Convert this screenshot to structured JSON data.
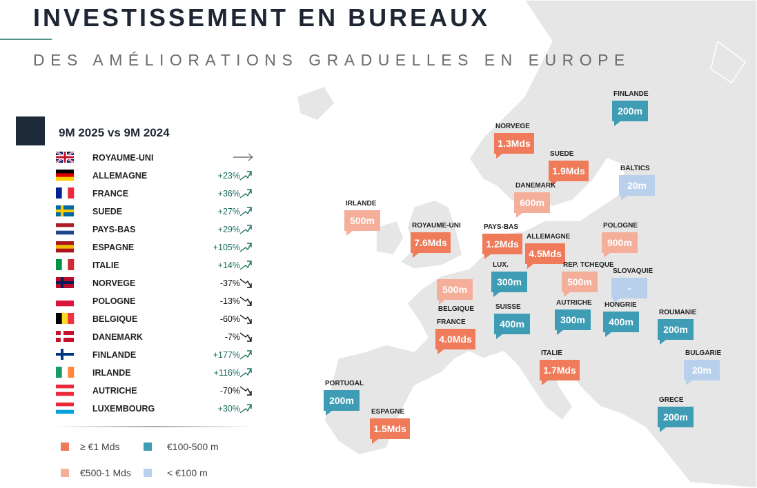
{
  "header": {
    "title": "INVESTISSEMENT EN BUREAUX",
    "subtitle": "DES AMÉLIORATIONS GRADUELLES EN EUROPE"
  },
  "table": {
    "title": "9M 2025 vs 9M 2024",
    "rows": [
      {
        "country": "ROYAUME-UNI",
        "trend": "flat",
        "flag": {
          "type": "uk",
          "colors": [
            "#012169",
            "#ffffff",
            "#c8102e"
          ]
        }
      },
      {
        "country": "ALLEMAGNE",
        "change": "+23%",
        "trend": "up",
        "flag": {
          "type": "h",
          "colors": [
            "#000000",
            "#dd0000",
            "#ffce00"
          ]
        }
      },
      {
        "country": "FRANCE",
        "change": "+36%",
        "trend": "up",
        "flag": {
          "type": "v",
          "colors": [
            "#002395",
            "#ffffff",
            "#ed2939"
          ]
        }
      },
      {
        "country": "SUEDE",
        "change": "+27%",
        "trend": "up",
        "flag": {
          "type": "nordic",
          "colors": [
            "#006aa7",
            "#fecc00"
          ]
        }
      },
      {
        "country": "PAYS-BAS",
        "change": "+29%",
        "trend": "up",
        "flag": {
          "type": "h",
          "colors": [
            "#ae1c28",
            "#ffffff",
            "#21468b"
          ]
        }
      },
      {
        "country": "ESPAGNE",
        "change": "+105%",
        "trend": "up",
        "flag": {
          "type": "h",
          "colors": [
            "#aa151b",
            "#f1bf00",
            "#aa151b"
          ]
        }
      },
      {
        "country": "ITALIE",
        "change": "+14%",
        "trend": "up",
        "flag": {
          "type": "v",
          "colors": [
            "#009246",
            "#ffffff",
            "#ce2b37"
          ]
        }
      },
      {
        "country": "NORVEGE",
        "change": "-37%",
        "trend": "down",
        "flag": {
          "type": "nordic",
          "colors": [
            "#ba0c2f",
            "#00205b"
          ]
        }
      },
      {
        "country": "POLOGNE",
        "change": "-13%",
        "trend": "down",
        "flag": {
          "type": "h",
          "colors": [
            "#ffffff",
            "#dc143c"
          ]
        }
      },
      {
        "country": "BELGIQUE",
        "change": "-60%",
        "trend": "down",
        "flag": {
          "type": "v",
          "colors": [
            "#000000",
            "#fdda24",
            "#ef3340"
          ]
        }
      },
      {
        "country": "DANEMARK",
        "change": "-7%",
        "trend": "down",
        "flag": {
          "type": "nordic",
          "colors": [
            "#c8102e",
            "#ffffff"
          ]
        }
      },
      {
        "country": "FINLANDE",
        "change": "+177%",
        "trend": "up",
        "flag": {
          "type": "nordic",
          "colors": [
            "#ffffff",
            "#003580"
          ]
        }
      },
      {
        "country": "IRLANDE",
        "change": "+116%",
        "trend": "up",
        "flag": {
          "type": "v",
          "colors": [
            "#169b62",
            "#ffffff",
            "#ff883e"
          ]
        }
      },
      {
        "country": "AUTRICHE",
        "change": "-70%",
        "trend": "down",
        "flag": {
          "type": "h",
          "colors": [
            "#ed2939",
            "#ffffff",
            "#ed2939"
          ]
        }
      },
      {
        "country": "LUXEMBOURG",
        "change": "+30%",
        "trend": "up",
        "flag": {
          "type": "h",
          "colors": [
            "#ed2939",
            "#ffffff",
            "#00a1de"
          ]
        }
      }
    ]
  },
  "legend": [
    {
      "label": "≥ €1 Mds",
      "color": "#ef7b5b"
    },
    {
      "label": "€100-500 m",
      "color": "#3e9cb4"
    },
    {
      "label": "€500-1 Mds",
      "color": "#f4ae9a"
    },
    {
      "label": "< €100 m",
      "color": "#b9d0ec"
    }
  ],
  "map": {
    "callouts": [
      {
        "label": "FINLANDE",
        "value": "200m",
        "color": "#3e9cb4"
      },
      {
        "label": "NORVEGE",
        "value": "1.3Mds",
        "color": "#ef7b5b"
      },
      {
        "label": "SUEDE",
        "value": "1.9Mds",
        "color": "#ef7b5b"
      },
      {
        "label": "BALTICS",
        "value": "20m",
        "color": "#b9d0ec"
      },
      {
        "label": "DANEMARK",
        "value": "600m",
        "color": "#f4ae9a"
      },
      {
        "label": "IRLANDE",
        "value": "500m",
        "color": "#f4ae9a"
      },
      {
        "label": "ROYAUME-UNI",
        "value": "7.6Mds",
        "color": "#ef7b5b"
      },
      {
        "label": "PAYS-BAS",
        "value": "1.2Mds",
        "color": "#ef7b5b"
      },
      {
        "label": "ALLEMAGNE",
        "value": "4.5Mds",
        "color": "#ef7b5b"
      },
      {
        "label": "POLOGNE",
        "value": "900m",
        "color": "#f4ae9a"
      },
      {
        "label": "LUX.",
        "value": "300m",
        "color": "#3e9cb4"
      },
      {
        "label": "REP. TCHEQUE",
        "value": "500m",
        "color": "#f4ae9a"
      },
      {
        "label": "SLOVAQUIE",
        "value": "-",
        "color": "#b9d0ec"
      },
      {
        "label": "BELGIQUE",
        "value": "500m",
        "color": "#f4ae9a"
      },
      {
        "label": "SUISSE",
        "value": "400m",
        "color": "#3e9cb4"
      },
      {
        "label": "AUTRICHE",
        "value": "300m",
        "color": "#3e9cb4"
      },
      {
        "label": "HONGRIE",
        "value": "400m",
        "color": "#3e9cb4"
      },
      {
        "label": "ROUMANIE",
        "value": "200m",
        "color": "#3e9cb4"
      },
      {
        "label": "FRANCE",
        "value": "4.0Mds",
        "color": "#ef7b5b"
      },
      {
        "label": "ITALIE",
        "value": "1.7Mds",
        "color": "#ef7b5b"
      },
      {
        "label": "BULGARIE",
        "value": "20m",
        "color": "#b9d0ec"
      },
      {
        "label": "PORTUGAL",
        "value": "200m",
        "color": "#3e9cb4"
      },
      {
        "label": "GRECE",
        "value": "200m",
        "color": "#3e9cb4"
      },
      {
        "label": "ESPAGNE",
        "value": "1.5Mds",
        "color": "#ef7b5b"
      }
    ]
  }
}
